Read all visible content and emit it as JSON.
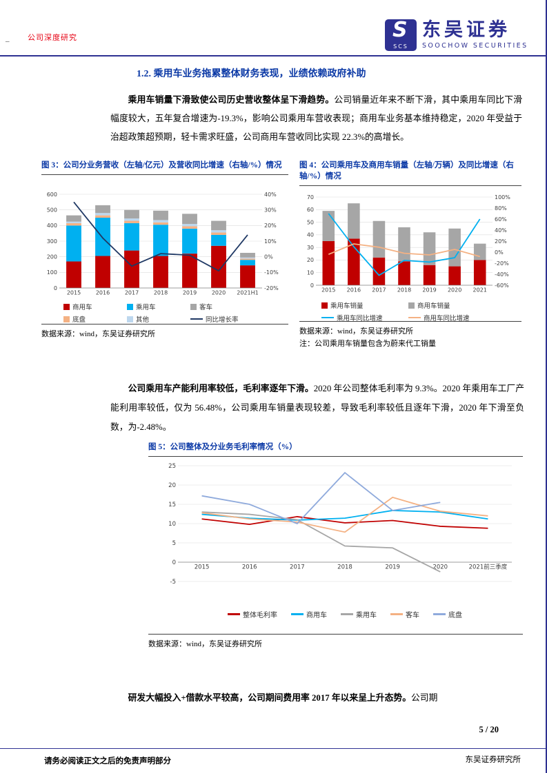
{
  "header": {
    "category": "公司深度研究",
    "margin_mark": "_",
    "brand": {
      "name": "东吴证券",
      "subtitle": "SOOCHOW SECURITIES",
      "logo_letter": "S",
      "logo_small": "SCS"
    },
    "accent_blue": "#2e3192",
    "accent_red": "#e60012"
  },
  "section": {
    "title": "1.2. 乘用车业务拖累整体财务表现，业绩依赖政府补助"
  },
  "paragraphs": {
    "p1_lead": "乘用车销量下滑致使公司历史营收整体呈下滑趋势。",
    "p1_body": "公司销量近年来不断下滑，其中乘用车同比下滑幅度较大，五年复合增速为-19.3%，影响公司乘用车营收表现；商用车业务基本维持稳定，2020 年受益于治超政策超预期，轻卡需求旺盛，公司商用车营收同比实现 22.3%的高增长。",
    "p2_lead": "公司乘用车产能利用率较低，毛利率逐年下滑。",
    "p2_body": "2020 年公司整体毛利率为 9.3%。2020 年乘用车工厂产能利用率较低，仅为 56.48%，公司乘用车销量表现较差，导致毛利率较低且逐年下滑，2020 年下滑至负数，为-2.48%。",
    "p3_lead": "研发大幅投入+借款水平较高，公司期间费用率 2017 年以来呈上升态势。",
    "p3_body": "公司期"
  },
  "figures": {
    "fig3_caption": "图 3：公司分业务营收（左轴/亿元）及营收同比增速（右轴/%）情况",
    "fig4_caption": "图 4：公司乘用车及商用车销量（左轴/万辆）及同比增速（右轴/%）情况",
    "fig5_caption": "图 5：公司整体及分业务毛利率情况（%）",
    "fig3_source": "数据来源：wind，东吴证券研究所",
    "fig4_source": "数据来源：wind，东吴证券研究所",
    "fig4_note": "注：公司乘用车销量包含为蔚来代工销量",
    "fig5_source": "数据来源：wind，东吴证券研究所"
  },
  "footer": {
    "page": "5 / 20",
    "disclaimer": "请务必阅读正文之后的免责声明部分",
    "org": "东吴证券研究所"
  },
  "chart_data": [
    {
      "id": "chart3",
      "type": "bar+line",
      "title": "公司分业务营收（左轴/亿元）及营收同比增速（右轴/%）",
      "categories": [
        "2015",
        "2016",
        "2017",
        "2018",
        "2019",
        "2020",
        "2021H1"
      ],
      "bar_series": [
        {
          "name": "商用车",
          "color": "#c00000",
          "values": [
            170,
            205,
            240,
            205,
            220,
            270,
            145
          ]
        },
        {
          "name": "乘用车",
          "color": "#00b0f0",
          "values": [
            230,
            245,
            175,
            200,
            160,
            70,
            35
          ]
        },
        {
          "name": "底盘",
          "color": "#f4b183",
          "values": [
            15,
            15,
            15,
            15,
            15,
            15,
            8
          ]
        },
        {
          "name": "其他",
          "color": "#bdd7ee",
          "values": [
            10,
            15,
            15,
            15,
            15,
            15,
            7
          ]
        },
        {
          "name": "客车",
          "color": "#a6a6a6",
          "values": [
            40,
            50,
            55,
            60,
            65,
            60,
            30
          ]
        }
      ],
      "line_series": [
        {
          "name": "同比增长率",
          "color": "#1f3864",
          "values": [
            35,
            12,
            -6,
            2,
            1,
            -9,
            14
          ]
        }
      ],
      "left_axis": {
        "min": 0,
        "max": 600,
        "step": 100
      },
      "right_axis": {
        "min": -20,
        "max": 40,
        "step": 10,
        "suffix": "%"
      },
      "legend": [
        {
          "label": "商用车",
          "color": "#c00000",
          "type": "box"
        },
        {
          "label": "乘用车",
          "color": "#00b0f0",
          "type": "box"
        },
        {
          "label": "客车",
          "color": "#a6a6a6",
          "type": "box"
        },
        {
          "label": "底盘",
          "color": "#f4b183",
          "type": "box"
        },
        {
          "label": "其他",
          "color": "#bdd7ee",
          "type": "box"
        },
        {
          "label": "同比增长率",
          "color": "#1f3864",
          "type": "line"
        }
      ]
    },
    {
      "id": "chart4",
      "type": "bar+line",
      "title": "公司乘用车及商用车销量（左轴/万辆）及同比增速（右轴/%）",
      "categories": [
        "2015",
        "2016",
        "2017",
        "2018",
        "2019",
        "2020",
        "2021"
      ],
      "bar_series": [
        {
          "name": "乘用车销量",
          "color": "#c00000",
          "values": [
            35,
            37,
            22,
            19,
            16,
            15,
            20
          ]
        },
        {
          "name": "商用车销量",
          "color": "#a6a6a6",
          "values": [
            24,
            28,
            29,
            27,
            26,
            30,
            13
          ]
        }
      ],
      "line_series": [
        {
          "name": "乘用车同比增速",
          "color": "#00b0f0",
          "values": [
            70,
            10,
            -42,
            -15,
            -18,
            -10,
            60
          ]
        },
        {
          "name": "商用车同比增速",
          "color": "#f4b183",
          "values": [
            -4,
            15,
            9,
            -2,
            -5,
            5,
            -8
          ]
        }
      ],
      "left_axis": {
        "min": 0,
        "max": 70,
        "step": 10
      },
      "right_axis": {
        "min": -60,
        "max": 100,
        "step": 20,
        "suffix": "%"
      },
      "legend": [
        {
          "label": "乘用车销量",
          "color": "#c00000",
          "type": "box"
        },
        {
          "label": "商用车销量",
          "color": "#a6a6a6",
          "type": "box"
        },
        {
          "label": "乘用车同比增速",
          "color": "#00b0f0",
          "type": "line"
        },
        {
          "label": "商用车同比增速",
          "color": "#f4b183",
          "type": "line"
        }
      ]
    },
    {
      "id": "chart5",
      "type": "line",
      "title": "公司整体及分业务毛利率情况（%）",
      "categories": [
        "2015",
        "2016",
        "2017",
        "2018",
        "2019",
        "2020",
        "2021前三季度"
      ],
      "line_series": [
        {
          "name": "整体毛利率",
          "color": "#c00000",
          "values": [
            11.2,
            9.8,
            11.8,
            10.2,
            10.8,
            9.3,
            8.8
          ]
        },
        {
          "name": "商用车",
          "color": "#00b0f0",
          "values": [
            12.4,
            11.4,
            10.9,
            11.4,
            13.4,
            13.0,
            11.2
          ]
        },
        {
          "name": "乘用车",
          "color": "#a6a6a6",
          "values": [
            13.0,
            12.4,
            11.0,
            4.2,
            3.7,
            -2.5,
            null
          ]
        },
        {
          "name": "客车",
          "color": "#f4b183",
          "values": [
            12.8,
            11.2,
            10.4,
            7.8,
            16.8,
            13.2,
            12.0
          ]
        },
        {
          "name": "底盘",
          "color": "#8faadc",
          "values": [
            17.2,
            15.0,
            10.0,
            23.2,
            13.4,
            15.5,
            null
          ]
        }
      ],
      "left_axis": {
        "min": -5,
        "max": 25,
        "step": 5
      },
      "legend": [
        {
          "label": "整体毛利率",
          "color": "#c00000",
          "type": "line"
        },
        {
          "label": "商用车",
          "color": "#00b0f0",
          "type": "line"
        },
        {
          "label": "乘用车",
          "color": "#a6a6a6",
          "type": "line"
        },
        {
          "label": "客车",
          "color": "#f4b183",
          "type": "line"
        },
        {
          "label": "底盘",
          "color": "#8faadc",
          "type": "line"
        }
      ]
    }
  ]
}
